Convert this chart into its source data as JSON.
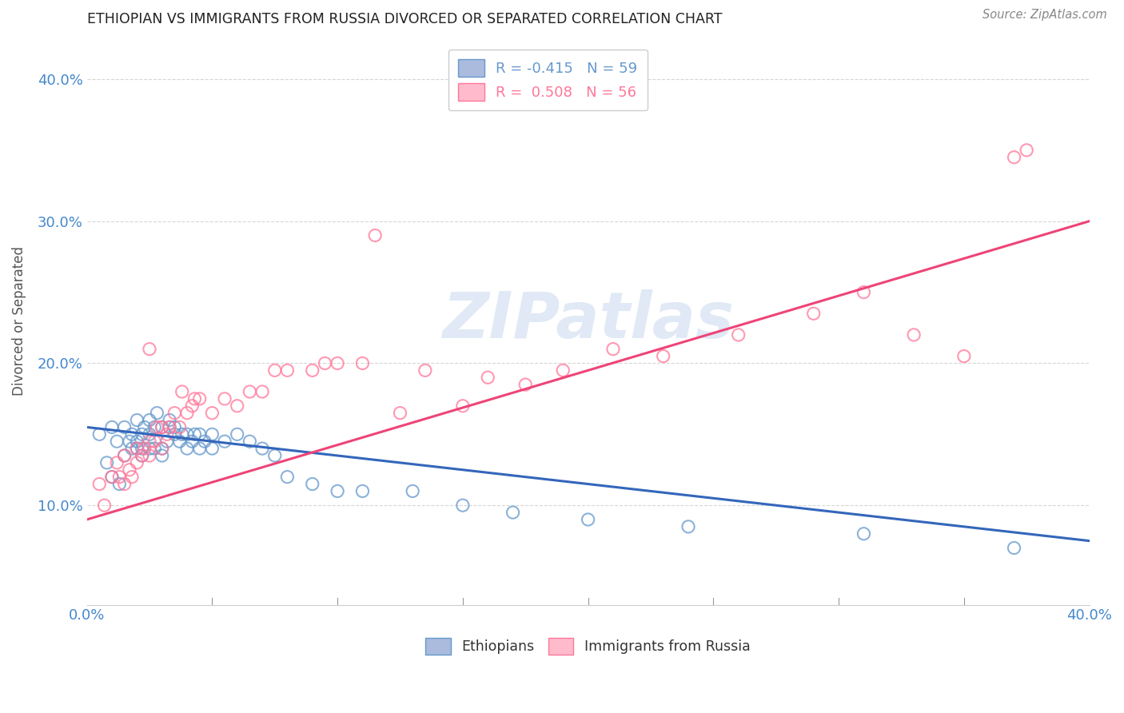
{
  "title": "ETHIOPIAN VS IMMIGRANTS FROM RUSSIA DIVORCED OR SEPARATED CORRELATION CHART",
  "source": "Source: ZipAtlas.com",
  "ylabel": "Divorced or Separated",
  "watermark": "ZIPatlas",
  "xmin": 0.0,
  "xmax": 0.4,
  "ymin": 0.03,
  "ymax": 0.43,
  "ytick_vals": [
    0.1,
    0.2,
    0.3,
    0.4
  ],
  "xtick_vals": [
    0.0,
    0.4
  ],
  "legend_entries": [
    {
      "label": "R = -0.415   N = 59",
      "color": "#6699cc"
    },
    {
      "label": "R =  0.508   N = 56",
      "color": "#ff7799"
    }
  ],
  "blue_color": "#6699cc",
  "pink_color": "#ff7799",
  "line_blue_color": "#3366bb",
  "line_pink_color": "#ee4477",
  "background_color": "#ffffff",
  "grid_color": "#cccccc",
  "tick_label_color": "#4488cc",
  "title_color": "#222222",
  "blue_scatter_x": [
    0.005,
    0.008,
    0.01,
    0.01,
    0.012,
    0.013,
    0.015,
    0.015,
    0.017,
    0.018,
    0.018,
    0.02,
    0.02,
    0.02,
    0.022,
    0.022,
    0.022,
    0.023,
    0.025,
    0.025,
    0.025,
    0.027,
    0.027,
    0.028,
    0.03,
    0.03,
    0.03,
    0.032,
    0.033,
    0.033,
    0.035,
    0.035,
    0.037,
    0.038,
    0.04,
    0.04,
    0.042,
    0.043,
    0.045,
    0.045,
    0.047,
    0.05,
    0.05,
    0.055,
    0.06,
    0.065,
    0.07,
    0.075,
    0.08,
    0.09,
    0.1,
    0.11,
    0.13,
    0.15,
    0.17,
    0.2,
    0.24,
    0.31,
    0.37
  ],
  "blue_scatter_y": [
    0.15,
    0.13,
    0.155,
    0.12,
    0.145,
    0.115,
    0.155,
    0.135,
    0.145,
    0.14,
    0.15,
    0.14,
    0.145,
    0.16,
    0.135,
    0.14,
    0.15,
    0.155,
    0.14,
    0.15,
    0.16,
    0.14,
    0.155,
    0.165,
    0.135,
    0.14,
    0.155,
    0.145,
    0.155,
    0.16,
    0.15,
    0.155,
    0.145,
    0.15,
    0.14,
    0.15,
    0.145,
    0.15,
    0.14,
    0.15,
    0.145,
    0.14,
    0.15,
    0.145,
    0.15,
    0.145,
    0.14,
    0.135,
    0.12,
    0.115,
    0.11,
    0.11,
    0.11,
    0.1,
    0.095,
    0.09,
    0.085,
    0.08,
    0.07
  ],
  "pink_scatter_x": [
    0.005,
    0.007,
    0.01,
    0.012,
    0.013,
    0.015,
    0.015,
    0.017,
    0.018,
    0.02,
    0.02,
    0.022,
    0.023,
    0.025,
    0.025,
    0.025,
    0.027,
    0.028,
    0.03,
    0.03,
    0.032,
    0.033,
    0.035,
    0.037,
    0.038,
    0.04,
    0.042,
    0.043,
    0.045,
    0.05,
    0.055,
    0.06,
    0.065,
    0.07,
    0.075,
    0.08,
    0.09,
    0.095,
    0.1,
    0.11,
    0.115,
    0.125,
    0.135,
    0.15,
    0.16,
    0.175,
    0.19,
    0.21,
    0.23,
    0.26,
    0.29,
    0.31,
    0.33,
    0.35,
    0.37,
    0.375
  ],
  "pink_scatter_y": [
    0.115,
    0.1,
    0.12,
    0.13,
    0.12,
    0.135,
    0.115,
    0.125,
    0.12,
    0.13,
    0.14,
    0.135,
    0.14,
    0.135,
    0.145,
    0.21,
    0.145,
    0.155,
    0.14,
    0.155,
    0.15,
    0.155,
    0.165,
    0.155,
    0.18,
    0.165,
    0.17,
    0.175,
    0.175,
    0.165,
    0.175,
    0.17,
    0.18,
    0.18,
    0.195,
    0.195,
    0.195,
    0.2,
    0.2,
    0.2,
    0.29,
    0.165,
    0.195,
    0.17,
    0.19,
    0.185,
    0.195,
    0.21,
    0.205,
    0.22,
    0.235,
    0.25,
    0.22,
    0.205,
    0.345,
    0.35
  ],
  "blue_line_x": [
    0.0,
    0.4
  ],
  "blue_line_y": [
    0.155,
    0.075
  ],
  "pink_line_x": [
    0.0,
    0.4
  ],
  "pink_line_y": [
    0.09,
    0.3
  ]
}
